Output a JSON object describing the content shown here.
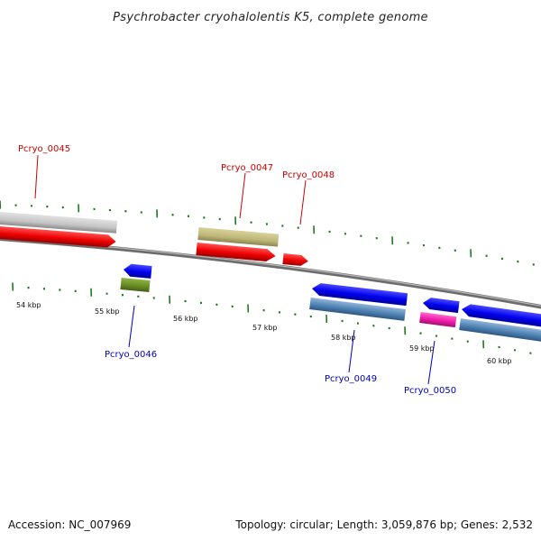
{
  "title": "Psychrobacter cryohalolentis K5, complete genome",
  "accession": "Accession: NC_007969",
  "summary": "Topology: circular; Length: 3,059,876 bp; Genes: 2,532",
  "colors": {
    "forward_label": "#cc0000",
    "reverse_label": "#0000bb",
    "tick": "#1e7a1e",
    "backbone": "#7a7a7a"
  },
  "kbp_labels": [
    "54 kbp",
    "55 kbp",
    "56 kbp",
    "57 kbp",
    "58 kbp",
    "59 kbp",
    "60 kbp"
  ],
  "genes": [
    {
      "id": "Pcryo_0045",
      "strand": "forward",
      "color": "#cc0000"
    },
    {
      "id": "Pcryo_0046",
      "strand": "reverse",
      "color": "#0000bb"
    },
    {
      "id": "Pcryo_0047",
      "strand": "forward",
      "color": "#cc0000"
    },
    {
      "id": "Pcryo_0048",
      "strand": "forward",
      "color": "#cc0000"
    },
    {
      "id": "Pcryo_0049",
      "strand": "reverse",
      "color": "#0000bb"
    },
    {
      "id": "Pcryo_0050",
      "strand": "reverse",
      "color": "#0000bb"
    }
  ]
}
